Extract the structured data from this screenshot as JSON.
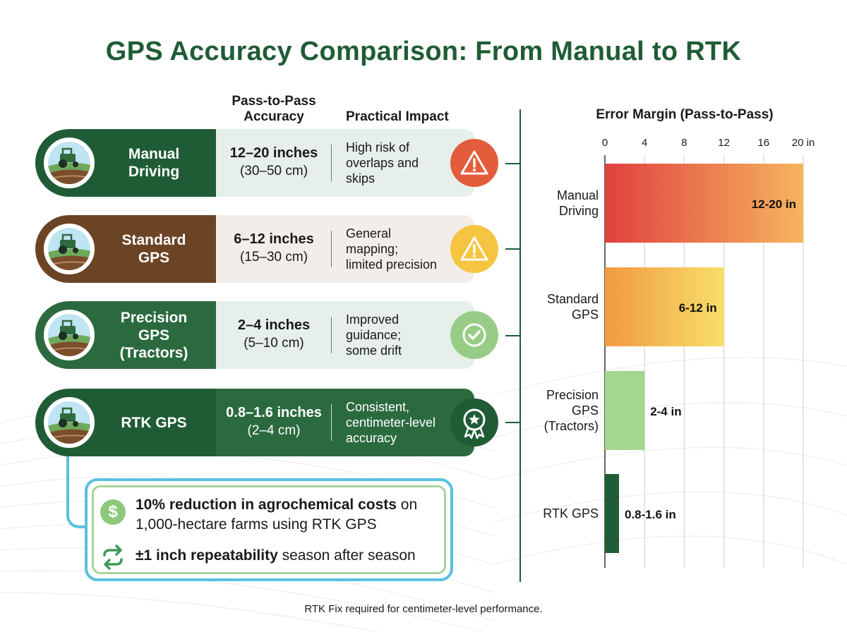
{
  "title": "GPS Accuracy Comparison: From Manual to RTK",
  "columns": {
    "accuracy_header_1": "Pass-to-Pass",
    "accuracy_header_2": "Accuracy",
    "impact_header": "Practical Impact"
  },
  "rows": [
    {
      "method_1": "Manual",
      "method_2": "Driving",
      "method_3": "",
      "accuracy_main": "12–20 inches",
      "accuracy_sub": "(30–50 cm)",
      "impact_1": "High risk of",
      "impact_2": "overlaps and",
      "impact_3": "skips",
      "status_icon": "warning-icon",
      "color": "#1f5c36"
    },
    {
      "method_1": "Standard",
      "method_2": "GPS",
      "method_3": "",
      "accuracy_main": "6–12 inches",
      "accuracy_sub": "(15–30 cm)",
      "impact_1": "General",
      "impact_2": "mapping;",
      "impact_3": "limited precision",
      "status_icon": "warning-icon",
      "color": "#6b4426"
    },
    {
      "method_1": "Precision",
      "method_2": "GPS",
      "method_3": "(Tractors)",
      "accuracy_main": "2–4 inches",
      "accuracy_sub": "(5–10 cm)",
      "impact_1": "Improved",
      "impact_2": "guidance;",
      "impact_3": "some drift",
      "status_icon": "check-icon",
      "color": "#2b6a3f"
    },
    {
      "method_1": "RTK GPS",
      "method_2": "",
      "method_3": "",
      "accuracy_main": "0.8–1.6 inches",
      "accuracy_sub": "(2–4 cm)",
      "impact_1": "Consistent,",
      "impact_2": "centimeter-level",
      "impact_3": "accuracy",
      "status_icon": "award-icon",
      "color": "#1f5c36"
    }
  ],
  "callout": {
    "dollar_symbol": "$",
    "line1_bold": "10% reduction in agrochemical costs",
    "line1_rest": " on 1,000-hectare farms using RTK GPS",
    "line2_bold": "±1 inch repeatability",
    "line2_rest": " season after season"
  },
  "footnote": "RTK Fix required for centimeter-level performance.",
  "chart_data": {
    "type": "bar",
    "orientation": "horizontal",
    "title": "Error Margin (Pass-to-Pass)",
    "xlim": [
      0,
      20
    ],
    "ticks": [
      0,
      4,
      8,
      12,
      16,
      20
    ],
    "tick_labels": [
      "0",
      "4",
      "8",
      "12",
      "16",
      "20 in"
    ],
    "grid": true,
    "categories": [
      {
        "label_lines": [
          "Manual",
          "Driving"
        ]
      },
      {
        "label_lines": [
          "Standard",
          "GPS"
        ]
      },
      {
        "label_lines": [
          "Precision",
          "GPS",
          "(Tractors)"
        ]
      },
      {
        "label_lines": [
          "RTK GPS"
        ]
      }
    ],
    "series": [
      {
        "ranges": [
          [
            0,
            20
          ],
          [
            0,
            12
          ],
          [
            0,
            4
          ],
          [
            0,
            1.6
          ]
        ],
        "data_labels": [
          "12-20 in",
          "6-12 in",
          "2-4 in",
          "0.8-1.6 in"
        ]
      }
    ],
    "colors": [
      [
        "#e0413f",
        "#f6b55f"
      ],
      [
        "#f29a40",
        "#f7df6a"
      ],
      [
        "#a3d68f",
        "#a3d68f"
      ],
      [
        "#1f5c36",
        "#1f5c36"
      ]
    ]
  }
}
